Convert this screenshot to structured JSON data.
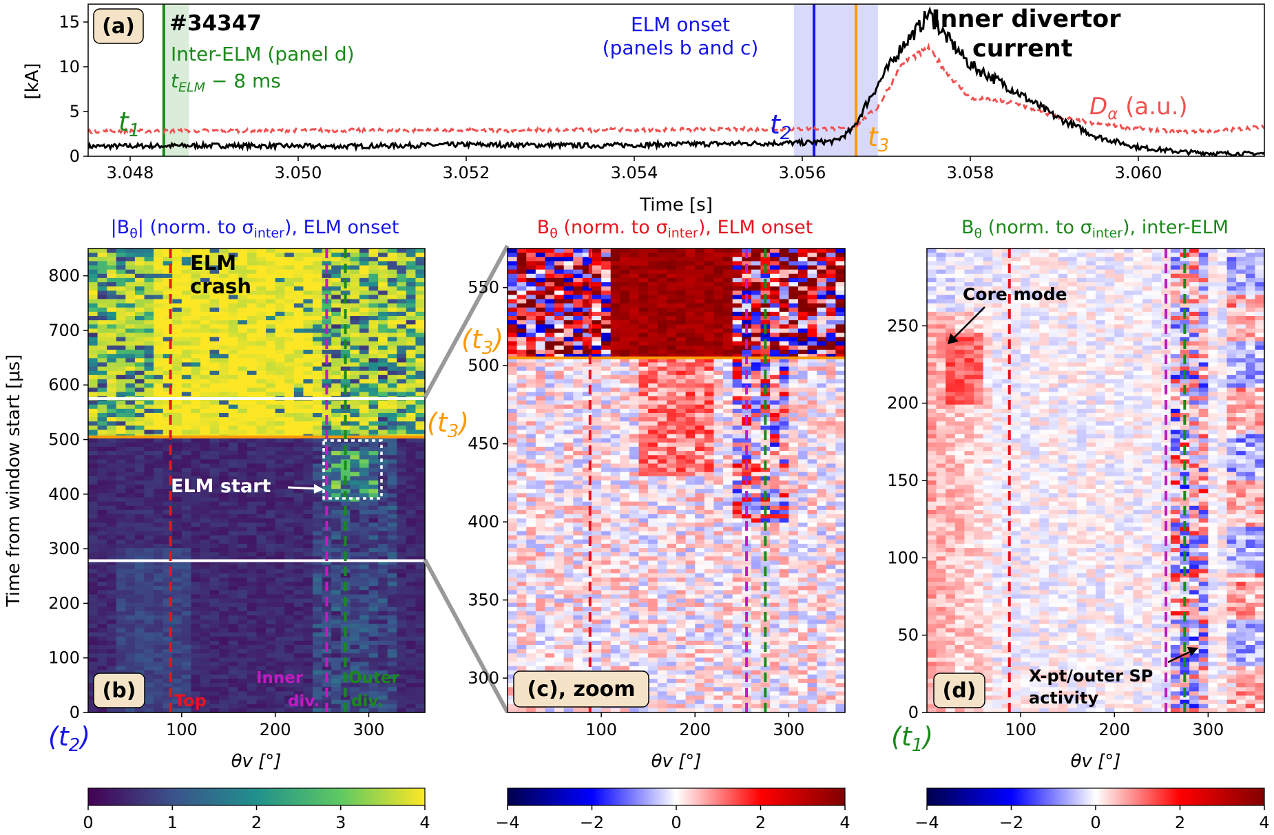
{
  "colors": {
    "black": "#000000",
    "dalpha": "#f0504e",
    "green": "#1a8a1a",
    "blue": "#1515e8",
    "orange": "#ff9900",
    "red": "#e8141e",
    "magenta": "#c21ac2",
    "badge_bg": "#f5e3c8"
  },
  "top_panel": {
    "badge": "(a)",
    "shot": "#34347",
    "interelm_line1": "Inter-ELM (panel d)",
    "interelm_line2": "t",
    "interelm_sub": "ELM",
    "interelm_rest": " − 8 ms",
    "elm_onset_line1": "ELM onset",
    "elm_onset_line2": "(panels b and c)",
    "divertor_line1": "Inner divertor",
    "divertor_line2": "current",
    "dalpha_label_main": "D",
    "dalpha_label_sub": "α",
    "dalpha_label_rest": " (a.u.)",
    "t1_main": "t",
    "t1_sub": "1",
    "t2_main": "t",
    "t2_sub": "2",
    "t3_main": "t",
    "t3_sub": "3"
  },
  "panel_b": {
    "title_pre": "|B",
    "title_sub": "θ",
    "title_post": "| (norm. to σ",
    "title_sub2": "inter",
    "title_end": "), ELM onset",
    "badge": "(b)",
    "elm_crash_1": "ELM",
    "elm_crash_2": "crash",
    "elm_start": "ELM start",
    "top_label": "Top",
    "inner_1": "Inner",
    "inner_2": "div.",
    "outer_1": "Outer",
    "outer_2": "div.",
    "t2_main": "(t",
    "t2_sub": "2",
    "t2_end": ")",
    "t3_main": "(t",
    "t3_sub": "3",
    "t3_end": ")"
  },
  "panel_c": {
    "title_pre": "B",
    "title_sub": "θ",
    "title_post": " (norm. to σ",
    "title_sub2": "inter",
    "title_end": "), ELM onset",
    "badge": "(c), zoom",
    "t3_main": "(t",
    "t3_sub": "3",
    "t3_end": ")"
  },
  "panel_d": {
    "title_pre": "B",
    "title_sub": "θ",
    "title_post": " (norm. to σ",
    "title_sub2": "inter",
    "title_end": "), inter-ELM",
    "badge": "(d)",
    "core_mode": "Core mode",
    "xpt_1": "X-pt/outer SP",
    "xpt_2": "activity",
    "t1_main": "(t",
    "t1_sub": "1",
    "t1_end": ")"
  },
  "colorbars": {
    "b_ticks": [
      "0",
      "1",
      "2",
      "3",
      "4"
    ],
    "c_ticks": [
      "−4",
      "−2",
      "0",
      "2",
      "4"
    ],
    "d_ticks": [
      "−4",
      "−2",
      "0",
      "2",
      "4"
    ]
  },
  "chart_data": [
    {
      "type": "line",
      "panel": "(a)",
      "xlabel": "Time [s]",
      "ylabel": "[kA]",
      "xlim": [
        3.0475,
        3.0615
      ],
      "ylim": [
        0,
        17
      ],
      "xticks": [
        3.048,
        3.05,
        3.052,
        3.054,
        3.056,
        3.058,
        3.06
      ],
      "xtick_labels": [
        "3.048",
        "3.050",
        "3.052",
        "3.054",
        "3.056",
        "3.058",
        "3.060"
      ],
      "yticks": [
        0,
        5,
        10,
        15
      ],
      "ytick_labels": [
        "0",
        "5",
        "10",
        "15"
      ],
      "series": [
        {
          "name": "Inner divertor current",
          "x": [
            3.0475,
            3.049,
            3.0505,
            3.052,
            3.0535,
            3.055,
            3.056,
            3.0564,
            3.0566,
            3.0568,
            3.057,
            3.0572,
            3.0574,
            3.0575,
            3.0577,
            3.058,
            3.0585,
            3.059,
            3.0595,
            3.06,
            3.0605,
            3.061,
            3.0615
          ],
          "values": [
            1.1,
            1.2,
            1.1,
            1.3,
            1.2,
            1.4,
            1.5,
            1.7,
            3.0,
            6.5,
            9.5,
            12.5,
            14.5,
            16.0,
            13.5,
            10.2,
            7.5,
            4.5,
            2.2,
            1.0,
            0.5,
            0.3,
            0.3
          ]
        },
        {
          "name": "D_alpha (a.u.)",
          "x": [
            3.0475,
            3.05,
            3.0525,
            3.055,
            3.0566,
            3.0569,
            3.0572,
            3.0575,
            3.0578,
            3.058,
            3.0585,
            3.059,
            3.0595,
            3.06,
            3.0605,
            3.061,
            3.0615
          ],
          "values": [
            2.8,
            2.9,
            2.9,
            3.0,
            3.1,
            5.5,
            10.5,
            12.0,
            8.5,
            6.5,
            6.0,
            4.5,
            3.6,
            3.1,
            2.7,
            2.9,
            3.3
          ]
        }
      ],
      "vlines": [
        {
          "x": 3.0484,
          "label": "t1",
          "color": "green"
        },
        {
          "x": 3.05614,
          "label": "t2",
          "color": "blue"
        },
        {
          "x": 3.05664,
          "label": "t3",
          "color": "orange"
        }
      ],
      "shaded": [
        {
          "x": [
            3.0484,
            3.0487
          ],
          "color": "green"
        },
        {
          "x": [
            3.0559,
            3.0569
          ],
          "color": "blue"
        }
      ]
    },
    {
      "type": "heatmap",
      "panel": "(b)",
      "xlabel": "θv [°]",
      "ylabel": "Time from window start [μs]",
      "xlim": [
        0,
        360
      ],
      "ylim": [
        0,
        850
      ],
      "xticks": [
        100,
        200,
        300
      ],
      "yticks": [
        0,
        100,
        200,
        300,
        400,
        500,
        600,
        700,
        800
      ],
      "colorbar": {
        "range": [
          0,
          4
        ],
        "ticks": [
          0,
          1,
          2,
          3,
          4
        ],
        "cmap": "viridis"
      },
      "vlines": [
        {
          "x": 88,
          "label": "Top",
          "color": "red"
        },
        {
          "x": 255,
          "label": "Inner div.",
          "color": "magenta"
        },
        {
          "x": 275,
          "label": "Outer div.",
          "color": "green"
        }
      ],
      "hlines": [
        {
          "y": 505,
          "color": "orange"
        },
        {
          "y": 278,
          "color": "white"
        },
        {
          "y": 575,
          "color": "white"
        }
      ]
    },
    {
      "type": "heatmap",
      "panel": "(c), zoom",
      "xlabel": "θv [°]",
      "xlim": [
        0,
        360
      ],
      "ylim": [
        278,
        575
      ],
      "xticks": [
        100,
        200,
        300
      ],
      "yticks": [
        300,
        350,
        400,
        450,
        500,
        550
      ],
      "colorbar": {
        "range": [
          -4,
          4
        ],
        "ticks": [
          -4,
          -2,
          0,
          2,
          4
        ],
        "cmap": "seismic"
      },
      "vlines": [
        {
          "x": 88,
          "color": "red"
        },
        {
          "x": 255,
          "color": "magenta"
        },
        {
          "x": 275,
          "color": "green"
        }
      ],
      "hlines": [
        {
          "y": 505,
          "color": "orange"
        }
      ]
    },
    {
      "type": "heatmap",
      "panel": "(d)",
      "xlabel": "θv [°]",
      "xlim": [
        0,
        360
      ],
      "ylim": [
        0,
        300
      ],
      "xticks": [
        100,
        200,
        300
      ],
      "yticks": [
        0,
        50,
        100,
        150,
        200,
        250
      ],
      "colorbar": {
        "range": [
          -4,
          4
        ],
        "ticks": [
          -4,
          -2,
          0,
          2,
          4
        ],
        "cmap": "seismic"
      },
      "vlines": [
        {
          "x": 88,
          "color": "red"
        },
        {
          "x": 255,
          "color": "magenta"
        },
        {
          "x": 275,
          "color": "green"
        }
      ]
    }
  ]
}
